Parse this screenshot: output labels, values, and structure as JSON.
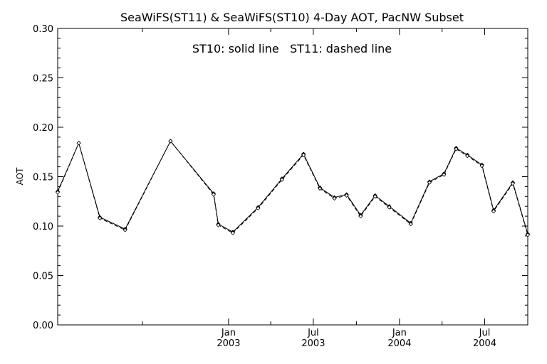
{
  "chart_data": {
    "type": "line",
    "title": "SeaWiFS(ST11) & SeaWiFS(ST10) 4-Day AOT, PacNW Subset",
    "annotation": "ST10: solid line   ST11: dashed line",
    "ylabel": "AOT",
    "xlabel": "",
    "ylim": [
      0.0,
      0.3
    ],
    "y_ticks": [
      "0.00",
      "0.05",
      "0.10",
      "0.15",
      "0.20",
      "0.25",
      "0.30"
    ],
    "x_range": [
      "2002-01-01",
      "2004-10-01"
    ],
    "x_ticks": [
      {
        "date": "2003-01-01",
        "label1": "Jan",
        "label2": "2003"
      },
      {
        "date": "2003-07-01",
        "label1": "Jul",
        "label2": "2003"
      },
      {
        "date": "2004-01-01",
        "label1": "Jan",
        "label2": "2004"
      },
      {
        "date": "2004-07-01",
        "label1": "Jul",
        "label2": "2004"
      }
    ],
    "series": [
      {
        "name": "ST10",
        "style": "solid",
        "points": [
          {
            "x": "2002-01-01",
            "y": 0.135
          },
          {
            "x": "2002-02-15",
            "y": 0.184
          },
          {
            "x": "2002-04-01",
            "y": 0.109
          },
          {
            "x": "2002-05-25",
            "y": 0.097
          },
          {
            "x": "2002-08-30",
            "y": 0.186
          },
          {
            "x": "2002-11-30",
            "y": 0.133
          },
          {
            "x": "2002-12-10",
            "y": 0.102
          },
          {
            "x": "2003-01-10",
            "y": 0.094
          },
          {
            "x": "2003-03-05",
            "y": 0.119
          },
          {
            "x": "2003-04-25",
            "y": 0.148
          },
          {
            "x": "2003-06-10",
            "y": 0.173
          },
          {
            "x": "2003-07-15",
            "y": 0.139
          },
          {
            "x": "2003-08-15",
            "y": 0.129
          },
          {
            "x": "2003-09-10",
            "y": 0.132
          },
          {
            "x": "2003-10-10",
            "y": 0.111
          },
          {
            "x": "2003-11-10",
            "y": 0.131
          },
          {
            "x": "2003-12-10",
            "y": 0.12
          },
          {
            "x": "2004-01-25",
            "y": 0.103
          },
          {
            "x": "2004-03-05",
            "y": 0.145
          },
          {
            "x": "2004-04-05",
            "y": 0.153
          },
          {
            "x": "2004-05-01",
            "y": 0.179
          },
          {
            "x": "2004-05-25",
            "y": 0.172
          },
          {
            "x": "2004-06-25",
            "y": 0.162
          },
          {
            "x": "2004-07-20",
            "y": 0.116
          },
          {
            "x": "2004-08-30",
            "y": 0.144
          },
          {
            "x": "2004-10-01",
            "y": 0.092
          }
        ]
      },
      {
        "name": "ST11",
        "style": "dashed",
        "points": [
          {
            "x": "2002-01-01",
            "y": 0.134
          },
          {
            "x": "2002-02-15",
            "y": 0.184
          },
          {
            "x": "2002-04-01",
            "y": 0.108
          },
          {
            "x": "2002-05-25",
            "y": 0.096
          },
          {
            "x": "2002-08-30",
            "y": 0.186
          },
          {
            "x": "2002-11-30",
            "y": 0.132
          },
          {
            "x": "2002-12-10",
            "y": 0.101
          },
          {
            "x": "2003-01-10",
            "y": 0.093
          },
          {
            "x": "2003-03-05",
            "y": 0.118
          },
          {
            "x": "2003-04-25",
            "y": 0.147
          },
          {
            "x": "2003-06-10",
            "y": 0.172
          },
          {
            "x": "2003-07-15",
            "y": 0.138
          },
          {
            "x": "2003-08-15",
            "y": 0.128
          },
          {
            "x": "2003-09-10",
            "y": 0.131
          },
          {
            "x": "2003-10-10",
            "y": 0.11
          },
          {
            "x": "2003-11-10",
            "y": 0.13
          },
          {
            "x": "2003-12-10",
            "y": 0.119
          },
          {
            "x": "2004-01-25",
            "y": 0.102
          },
          {
            "x": "2004-03-05",
            "y": 0.144
          },
          {
            "x": "2004-04-05",
            "y": 0.152
          },
          {
            "x": "2004-05-01",
            "y": 0.178
          },
          {
            "x": "2004-05-25",
            "y": 0.171
          },
          {
            "x": "2004-06-25",
            "y": 0.161
          },
          {
            "x": "2004-07-20",
            "y": 0.115
          },
          {
            "x": "2004-08-30",
            "y": 0.143
          },
          {
            "x": "2004-10-01",
            "y": 0.091
          }
        ]
      }
    ],
    "colors": {
      "line": "#000000",
      "background": "#ffffff"
    }
  }
}
